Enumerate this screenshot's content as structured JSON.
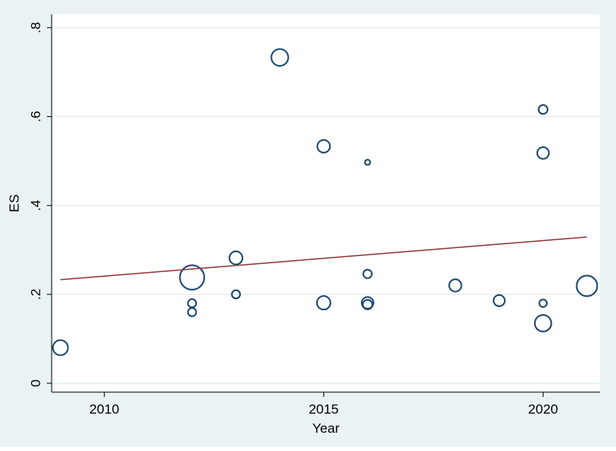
{
  "chart_data": {
    "type": "scatter",
    "title": "",
    "xlabel": "Year",
    "ylabel": "ES",
    "xlim": [
      2008.8,
      2021.3
    ],
    "ylim": [
      -0.02,
      0.83
    ],
    "x_ticks": [
      {
        "value": 2010,
        "label": "2010"
      },
      {
        "value": 2015,
        "label": "2015"
      },
      {
        "value": 2020,
        "label": "2020"
      }
    ],
    "y_ticks": [
      {
        "value": 0,
        "label": "0"
      },
      {
        "value": 0.2,
        "label": ".2"
      },
      {
        "value": 0.4,
        "label": ".4"
      },
      {
        "value": 0.6,
        "label": ".6"
      },
      {
        "value": 0.8,
        "label": ".8"
      }
    ],
    "grid": "horizontal",
    "marker": "hollow-circle-weighted",
    "points": [
      {
        "x": 2009,
        "y": 0.08,
        "weight": 1.0
      },
      {
        "x": 2012,
        "y": 0.238,
        "weight": 2.6
      },
      {
        "x": 2012,
        "y": 0.18,
        "weight": 0.3
      },
      {
        "x": 2012,
        "y": 0.16,
        "weight": 0.3
      },
      {
        "x": 2013,
        "y": 0.282,
        "weight": 0.75
      },
      {
        "x": 2013,
        "y": 0.2,
        "weight": 0.3
      },
      {
        "x": 2014,
        "y": 0.733,
        "weight": 1.25
      },
      {
        "x": 2015,
        "y": 0.533,
        "weight": 0.7
      },
      {
        "x": 2015,
        "y": 0.181,
        "weight": 0.8
      },
      {
        "x": 2016,
        "y": 0.497,
        "weight": 0.12
      },
      {
        "x": 2016,
        "y": 0.246,
        "weight": 0.32
      },
      {
        "x": 2016,
        "y": 0.181,
        "weight": 0.6
      },
      {
        "x": 2016,
        "y": 0.177,
        "weight": 0.4
      },
      {
        "x": 2018,
        "y": 0.22,
        "weight": 0.66
      },
      {
        "x": 2019,
        "y": 0.186,
        "weight": 0.55
      },
      {
        "x": 2020,
        "y": 0.616,
        "weight": 0.35
      },
      {
        "x": 2020,
        "y": 0.518,
        "weight": 0.6
      },
      {
        "x": 2020,
        "y": 0.18,
        "weight": 0.25
      },
      {
        "x": 2020,
        "y": 0.135,
        "weight": 1.2
      },
      {
        "x": 2021,
        "y": 0.219,
        "weight": 1.85
      }
    ],
    "fit_line": {
      "x": [
        2009,
        2021
      ],
      "y": [
        0.233,
        0.329
      ]
    },
    "colors": {
      "outer_background": "#eaf2f3",
      "plot_background": "#ffffff",
      "gridline": "#eaf2f3",
      "marker_stroke": "#1a476f",
      "fit_line": "#90353b",
      "axis": "#000000"
    }
  }
}
